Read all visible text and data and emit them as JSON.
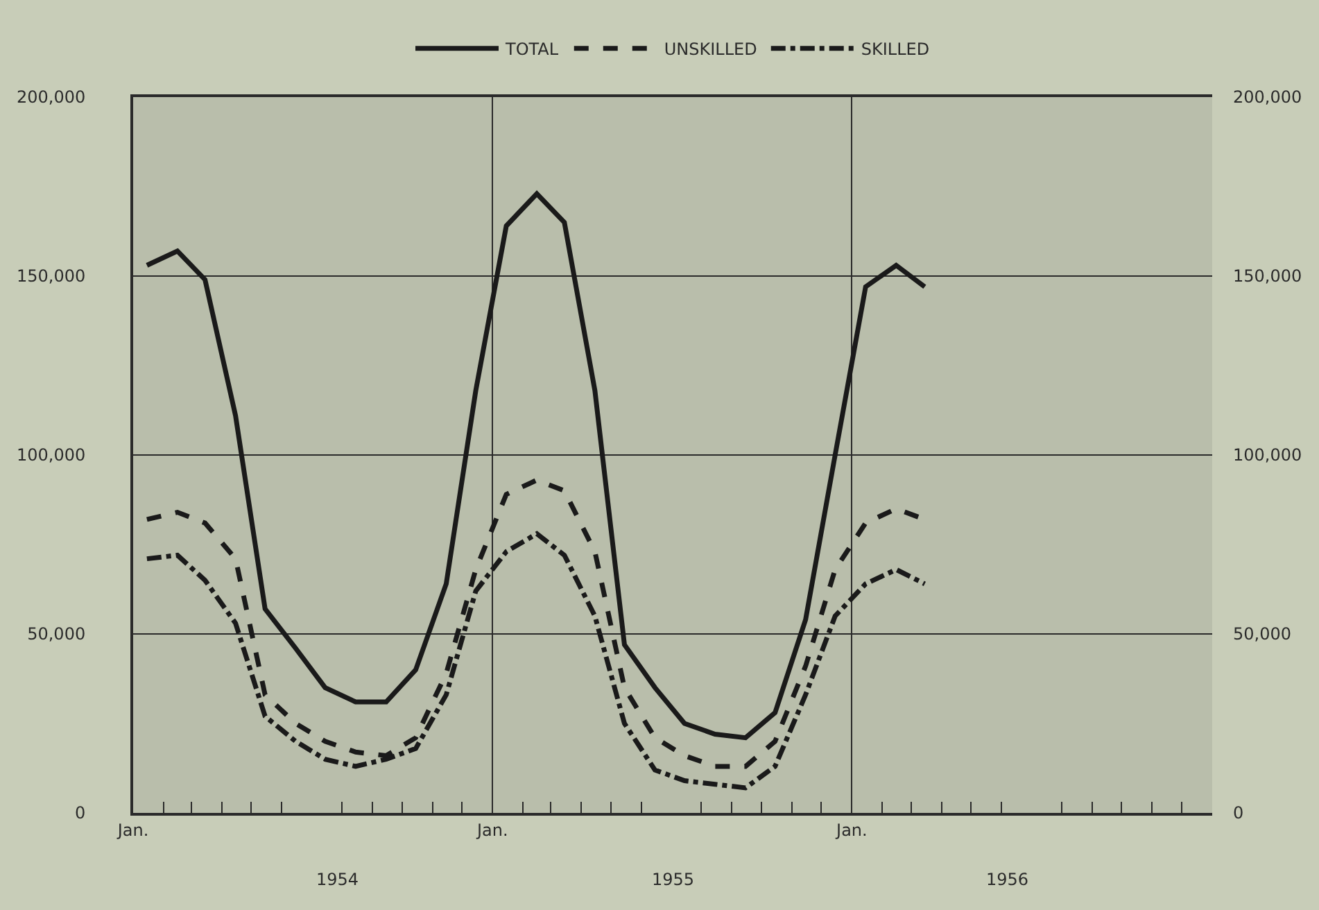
{
  "chart_data": {
    "type": "line",
    "x": [
      "1954-01-15",
      "1954-02-15",
      "1954-03-15",
      "1954-04-15",
      "1954-05-15",
      "1954-06-15",
      "1954-07-15",
      "1954-08-15",
      "1954-09-15",
      "1954-10-15",
      "1954-11-15",
      "1954-12-15",
      "1955-01-15",
      "1955-02-15",
      "1955-03-15",
      "1955-04-15",
      "1955-05-15",
      "1955-06-15",
      "1955-07-15",
      "1955-08-15",
      "1955-09-15",
      "1955-10-15",
      "1955-11-15",
      "1955-12-15",
      "1956-01-15",
      "1956-02-15",
      "1956-03-15"
    ],
    "series": [
      {
        "name": "TOTAL",
        "color": "#1a1a1a",
        "line_style": "solid",
        "values": [
          153000,
          157000,
          149000,
          111000,
          57000,
          46000,
          35000,
          31000,
          31000,
          40000,
          64000,
          118000,
          164000,
          173000,
          165000,
          118000,
          47000,
          35000,
          25000,
          22000,
          21000,
          28000,
          54000,
          100000,
          147000,
          153000,
          147000
        ]
      },
      {
        "name": "UNSKILLED",
        "color": "#1a1a1a",
        "line_style": "dashed",
        "values": [
          82000,
          84000,
          81000,
          71000,
          33000,
          25000,
          20000,
          17000,
          16000,
          21000,
          39000,
          68000,
          89000,
          93000,
          90000,
          73000,
          35000,
          21000,
          16000,
          13000,
          13000,
          20000,
          41000,
          68000,
          81000,
          85000,
          82000
        ]
      },
      {
        "name": "SKILLED",
        "color": "#1a1a1a",
        "line_style": "dashdot",
        "values": [
          71000,
          72000,
          65000,
          53000,
          27000,
          20000,
          15000,
          13000,
          15000,
          18000,
          33000,
          62000,
          73000,
          78000,
          72000,
          55000,
          25000,
          12000,
          9000,
          8000,
          7000,
          13000,
          33000,
          55000,
          64000,
          68000,
          64000
        ]
      }
    ],
    "xlim": [
      "1954-01-01",
      "1957-01-01"
    ],
    "xticks": [
      {
        "value": "1954-01-01",
        "label": "Jan."
      },
      {
        "value": "1955-01-01",
        "label": "Jan."
      },
      {
        "value": "1956-01-01",
        "label": "Jan."
      },
      {
        "value": "1954-02-01",
        "label": null
      },
      {
        "value": "1954-03-01",
        "label": null
      },
      {
        "value": "1954-04-01",
        "label": null
      },
      {
        "value": "1954-05-01",
        "label": null
      },
      {
        "value": "1954-06-01",
        "label": null
      },
      {
        "value": "1954-08-01",
        "label": null
      },
      {
        "value": "1954-09-01",
        "label": null
      },
      {
        "value": "1954-10-01",
        "label": null
      },
      {
        "value": "1954-11-01",
        "label": null
      },
      {
        "value": "1954-12-01",
        "label": null
      },
      {
        "value": "1955-02-01",
        "label": null
      },
      {
        "value": "1955-03-01",
        "label": null
      },
      {
        "value": "1955-04-01",
        "label": null
      },
      {
        "value": "1955-05-01",
        "label": null
      },
      {
        "value": "1955-06-01",
        "label": null
      },
      {
        "value": "1955-08-01",
        "label": null
      },
      {
        "value": "1955-09-01",
        "label": null
      },
      {
        "value": "1955-10-01",
        "label": null
      },
      {
        "value": "1955-11-01",
        "label": null
      },
      {
        "value": "1955-12-01",
        "label": null
      },
      {
        "value": "1956-02-01",
        "label": null
      },
      {
        "value": "1956-03-01",
        "label": null
      },
      {
        "value": "1956-04-01",
        "label": null
      },
      {
        "value": "1956-05-01",
        "label": null
      },
      {
        "value": "1956-06-01",
        "label": null
      },
      {
        "value": "1956-08-01",
        "label": null
      },
      {
        "value": "1956-09-01",
        "label": null
      },
      {
        "value": "1956-10-01",
        "label": null
      },
      {
        "value": "1956-11-01",
        "label": null
      },
      {
        "value": "1956-12-01",
        "label": null
      }
    ],
    "ylim": [
      0,
      200000
    ],
    "yticks": [
      {
        "value": 0,
        "label": "0"
      },
      {
        "value": 50000,
        "label": "50,000"
      },
      {
        "value": 100000,
        "label": "100,000"
      },
      {
        "value": 150000,
        "label": "150,000"
      },
      {
        "value": 200000,
        "label": "200,000"
      }
    ],
    "y2lim": [
      0,
      200000
    ],
    "y2ticks": [
      {
        "value": 0,
        "label": "0"
      },
      {
        "value": 50000,
        "label": "50,000"
      },
      {
        "value": 100000,
        "label": "100,000"
      },
      {
        "value": 150000,
        "label": "150,000"
      },
      {
        "value": 200000,
        "label": "200,000"
      }
    ],
    "annotations": [
      "1954",
      "1955",
      "1956"
    ],
    "grid": true,
    "legend": "top",
    "marker": "none"
  }
}
